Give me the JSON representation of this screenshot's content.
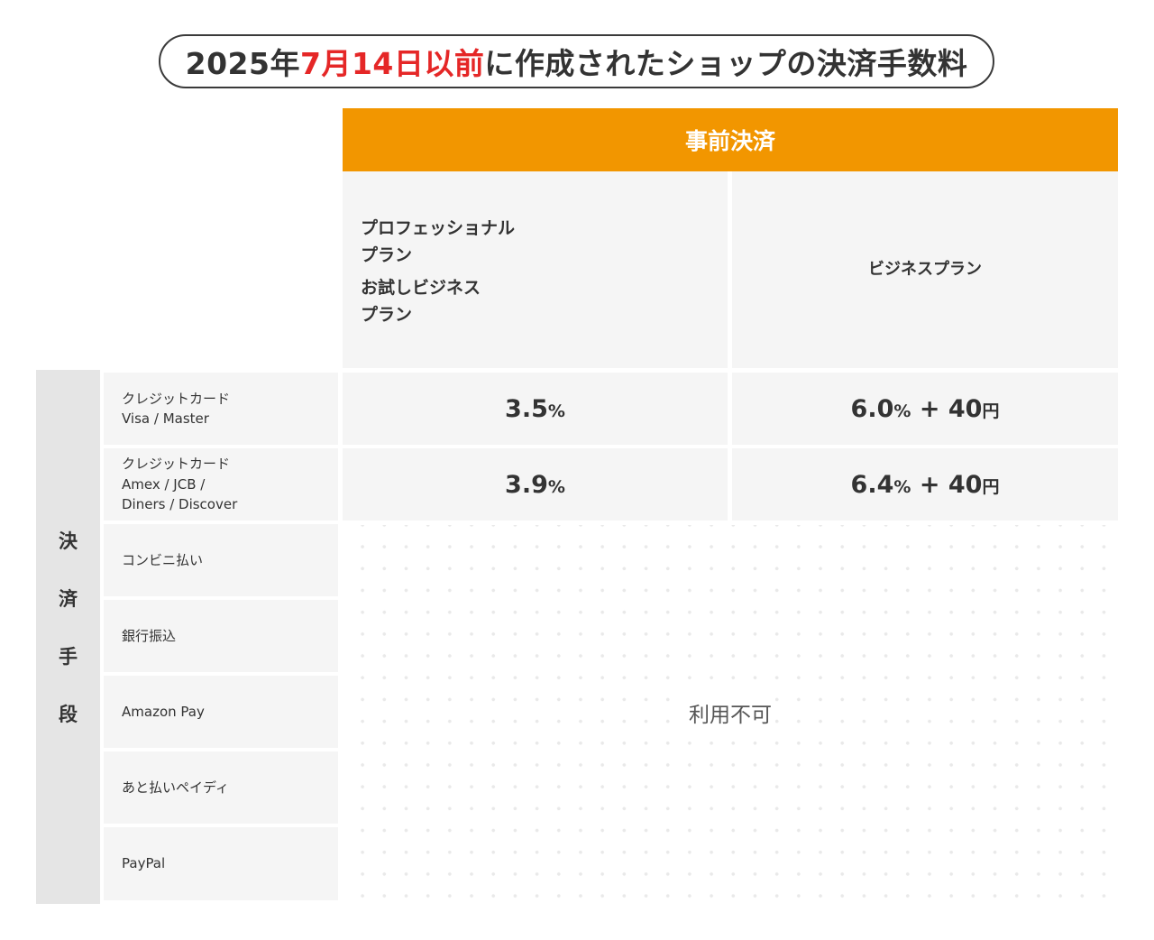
{
  "title": {
    "prefix": "2025年",
    "highlight": "7月14日以前",
    "suffix": "に作成されたショップの決済手数料",
    "highlight_color": "#e52727"
  },
  "header": {
    "label": "事前決済",
    "color": "#f29600"
  },
  "plans": {
    "left": [
      "プロフェッショナル\nプラン",
      "お試しビジネス\nプラン"
    ],
    "right": "ビジネスプラン"
  },
  "side_label": [
    "決",
    "済",
    "手",
    "段"
  ],
  "methods": [
    "クレジットカード\nVisa / Master",
    "クレジットカード\nAmex / JCB /\nDiners / Discover",
    "コンビニ払い",
    "銀行振込",
    "Amazon Pay",
    "あと払いペイディ",
    "PayPal"
  ],
  "rates": [
    {
      "left": {
        "value": "3.5",
        "unit": "%"
      },
      "right": {
        "value": "6.0",
        "unit": "%",
        "plus": "+ 40",
        "yen": "円"
      }
    },
    {
      "left": {
        "value": "3.9",
        "unit": "%"
      },
      "right": {
        "value": "6.4",
        "unit": "%",
        "plus": "+ 40",
        "yen": "円"
      }
    }
  ],
  "unavailable": "利用不可"
}
